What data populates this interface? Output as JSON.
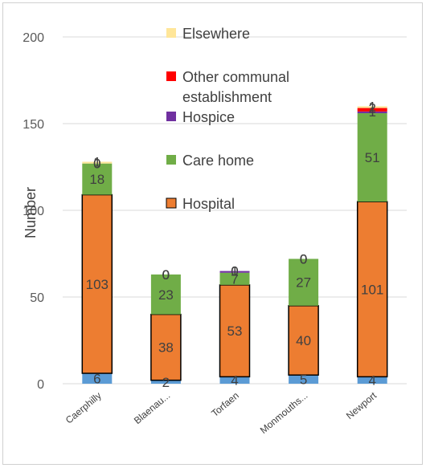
{
  "chart_data": {
    "type": "bar",
    "stacked": true,
    "title": "",
    "xlabel": "",
    "ylabel": "Number",
    "ylim": [
      0,
      200
    ],
    "yticks": [
      0,
      50,
      100,
      150,
      200
    ],
    "grid": true,
    "legend_position": "inside-top-center",
    "categories": [
      "Caerphilly",
      "Blaenau...",
      "Torfaen",
      "Monmouths...",
      "Newport"
    ],
    "series": [
      {
        "name": "",
        "color": "#5b9bd5",
        "values": [
          6,
          2,
          4,
          5,
          4
        ],
        "labels": [
          "6",
          "2",
          "4",
          "5",
          "4"
        ]
      },
      {
        "name": "Hospital",
        "color": "#ed7d31",
        "values": [
          103,
          38,
          53,
          40,
          101
        ],
        "labels": [
          "103",
          "38",
          "53",
          "40",
          "101"
        ]
      },
      {
        "name": "Care home",
        "color": "#70ad47",
        "values": [
          18,
          23,
          7,
          27,
          51
        ],
        "labels": [
          "18",
          "23",
          "7",
          "27",
          "51"
        ]
      },
      {
        "name": "Hospice",
        "color": "#7030a0",
        "values": [
          0,
          0,
          1,
          0,
          1
        ],
        "labels": [
          "0",
          "0",
          "1",
          "0",
          "1"
        ]
      },
      {
        "name": "Other communal establishment",
        "color": "#ff0000",
        "values": [
          0,
          0,
          0,
          0,
          2
        ],
        "labels": [
          "0",
          "0",
          "0",
          "0",
          "2"
        ]
      },
      {
        "name": "Elsewhere",
        "color": "#ffe699",
        "values": [
          1,
          0,
          0,
          0,
          1
        ],
        "labels": [
          "1",
          "0",
          "0",
          "0",
          "1"
        ]
      }
    ],
    "legend": [
      {
        "label": "Elsewhere",
        "color": "#ffe699"
      },
      {
        "label": "Other communal establishment",
        "color": "#ff0000"
      },
      {
        "label": "Hospice",
        "color": "#7030a0"
      },
      {
        "label": "Care home",
        "color": "#70ad47"
      },
      {
        "label": "Hospital",
        "color": "#ed7d31"
      }
    ]
  }
}
